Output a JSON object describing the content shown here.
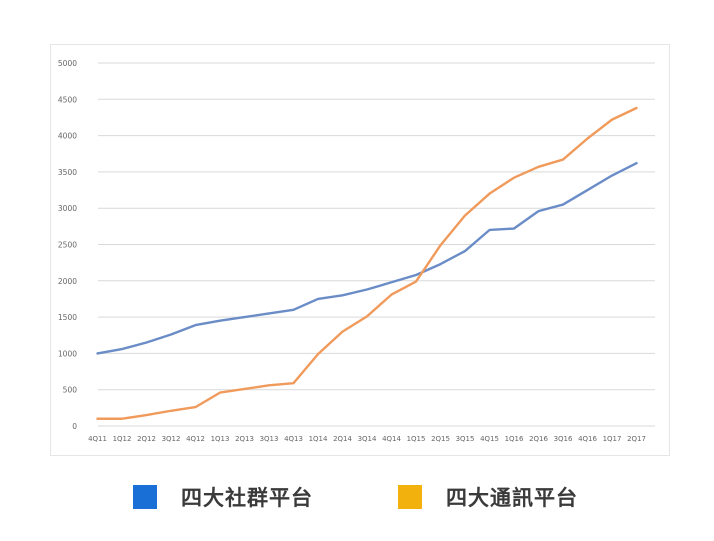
{
  "chart_data": {
    "type": "line",
    "title": "",
    "xlabel": "",
    "ylabel": "",
    "ylim": [
      0,
      5000
    ],
    "yticks": [
      0,
      500,
      1000,
      1500,
      2000,
      2500,
      3000,
      3500,
      4000,
      4500,
      5000
    ],
    "grid": true,
    "legend_position": "bottom",
    "categories": [
      "4Q11",
      "1Q12",
      "2Q12",
      "3Q12",
      "4Q12",
      "1Q13",
      "2Q13",
      "3Q13",
      "4Q13",
      "1Q14",
      "2Q14",
      "3Q14",
      "4Q14",
      "1Q15",
      "2Q15",
      "3Q15",
      "4Q15",
      "1Q16",
      "2Q16",
      "3Q16",
      "4Q16",
      "1Q17",
      "2Q17"
    ],
    "series": [
      {
        "name": "四大社群平台",
        "color": "#6a8cc7",
        "values": [
          1000,
          1060,
          1150,
          1260,
          1390,
          1450,
          1500,
          1550,
          1600,
          1750,
          1800,
          1880,
          1980,
          2080,
          2230,
          2410,
          2700,
          2720,
          2960,
          3050,
          3250,
          3450,
          3620
        ]
      },
      {
        "name": "四大通訊平台",
        "color": "#f09a5c",
        "values": [
          100,
          100,
          150,
          210,
          260,
          460,
          510,
          560,
          590,
          990,
          1300,
          1510,
          1810,
          1990,
          2490,
          2900,
          3200,
          3420,
          3570,
          3670,
          3960,
          4220,
          4380
        ]
      }
    ]
  },
  "legend": {
    "items": [
      {
        "label": "四大社群平台",
        "swatch_color": "#1a6fd6"
      },
      {
        "label": "四大通訊平台",
        "swatch_color": "#f2b10c"
      }
    ]
  }
}
